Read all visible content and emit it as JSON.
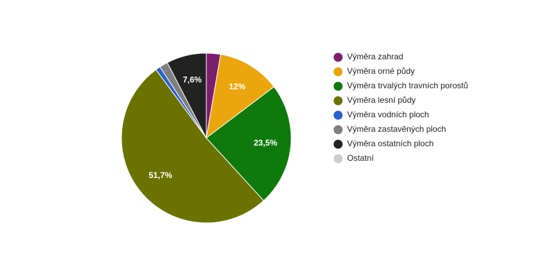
{
  "chart_data": {
    "type": "pie",
    "categories": [
      "Výměra zahrad",
      "Výměra orné půdy",
      "Výměra trvalých travních porostů",
      "Výměra lesní půdy",
      "Výměra vodních ploch",
      "Výměra zastavěných ploch",
      "Výměra ostatních ploch",
      "Ostatní"
    ],
    "values": [
      2.7,
      12,
      23.5,
      51.7,
      0.9,
      1.6,
      7.6,
      0
    ],
    "value_labels": [
      null,
      "12%",
      "23,5%",
      "51,7%",
      null,
      null,
      "7,6%",
      null
    ],
    "colors": [
      "#7b1e6e",
      "#eaa60c",
      "#0e7a0e",
      "#6b7300",
      "#2a5fcf",
      "#7f7f7f",
      "#222222",
      "#cccccc"
    ],
    "legend": "right"
  }
}
